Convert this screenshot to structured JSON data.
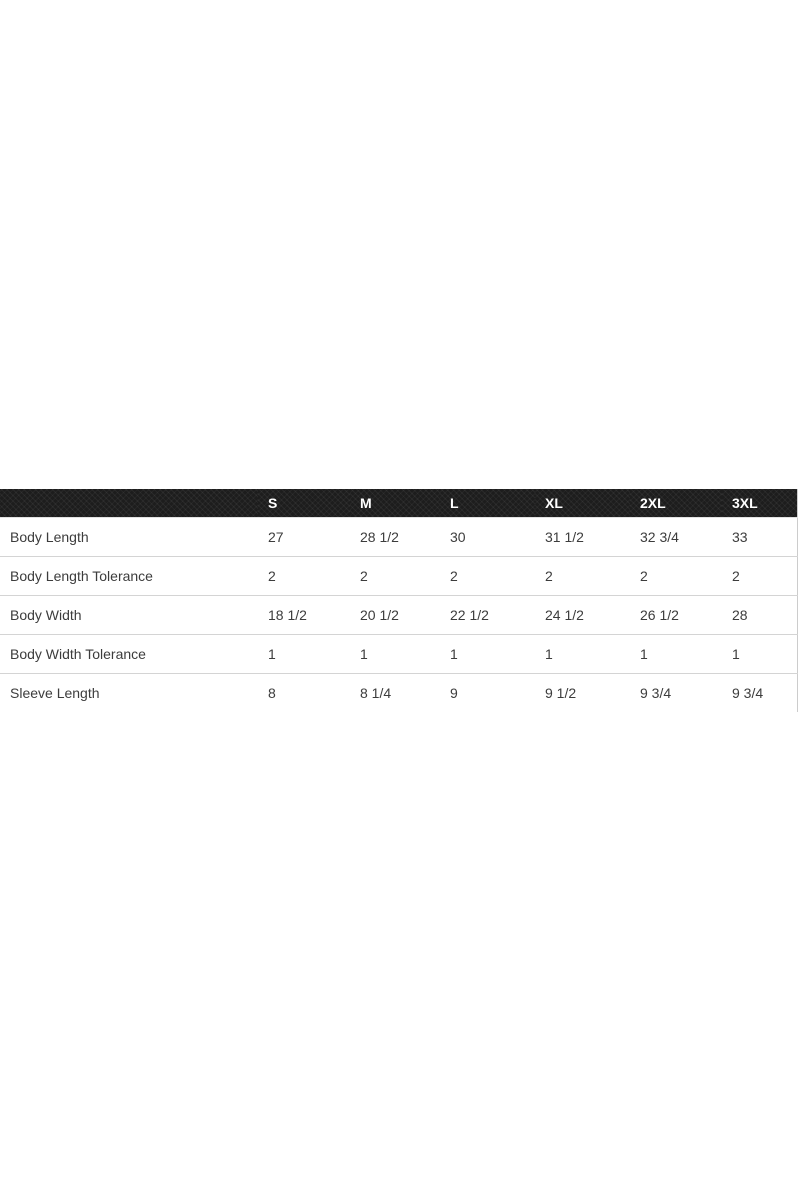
{
  "size_chart": {
    "columns": [
      "",
      "S",
      "M",
      "L",
      "XL",
      "2XL",
      "3XL"
    ],
    "rows": [
      {
        "label": "Body Length",
        "values": [
          "27",
          "28 1/2",
          "30",
          "31 1/2",
          "32 3/4",
          "33"
        ]
      },
      {
        "label": "Body Length Tolerance",
        "values": [
          "2",
          "2",
          "2",
          "2",
          "2",
          "2"
        ]
      },
      {
        "label": "Body Width",
        "values": [
          "18 1/2",
          "20 1/2",
          "22 1/2",
          "24 1/2",
          "26 1/2",
          "28"
        ]
      },
      {
        "label": "Body Width Tolerance",
        "values": [
          "1",
          "1",
          "1",
          "1",
          "1",
          "1"
        ]
      },
      {
        "label": "Sleeve Length",
        "values": [
          "8",
          "8 1/4",
          "9",
          "9 1/2",
          "9 3/4",
          "9 3/4"
        ]
      }
    ],
    "colors": {
      "header_bg": "#1d1d1d",
      "header_text": "#ffffff",
      "body_text": "#3c3c3c",
      "divider": "#d4d4d4",
      "right_border": "#cccccc",
      "page_bg": "#ffffff"
    }
  }
}
